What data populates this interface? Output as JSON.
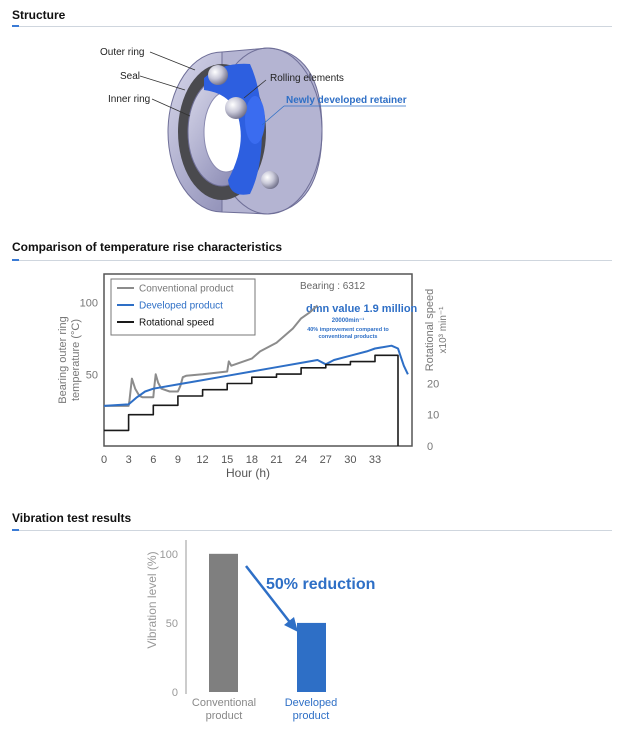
{
  "sections": {
    "structure": "Structure",
    "temperature": "Comparison of temperature rise characteristics",
    "vibration": "Vibration test results"
  },
  "structure_diagram": {
    "labels": {
      "outer_ring": "Outer ring",
      "seal": "Seal",
      "inner_ring": "Inner ring",
      "rolling_elements": "Rolling elements",
      "retainer": "Newly developed retainer"
    }
  },
  "chart_data": [
    {
      "type": "line",
      "legend": [
        "Conventional product",
        "Developed product",
        "Rotational speed"
      ],
      "bearing_label": "Bearing : 6312",
      "annotation": {
        "headline": "dmn value 1.9 million",
        "speed": "20000min⁻¹",
        "improvement": "40% improvement compared to conventional products"
      },
      "xlabel": "Hour (h)",
      "ylabel_left": [
        "Bearing outer ring",
        "temperature (°C)"
      ],
      "ylabel_right": [
        "Rotational speed",
        "x10³ min⁻¹"
      ],
      "x_ticks": [
        0,
        3,
        6,
        9,
        12,
        15,
        18,
        21,
        24,
        27,
        30,
        33
      ],
      "y_left_ticks": [
        50,
        100
      ],
      "y_right_ticks": [
        0,
        10,
        20
      ],
      "xlim": [
        0,
        37.5
      ],
      "ylim_left": [
        0,
        120
      ],
      "ylim_right": [
        0,
        55
      ],
      "series": [
        {
          "name": "Conventional product",
          "color": "#8c8c8c",
          "axis": "left",
          "points": [
            [
              0,
              28
            ],
            [
              3,
              28
            ],
            [
              3.1,
              32
            ],
            [
              3.4,
              47
            ],
            [
              3.8,
              40
            ],
            [
              4.3,
              35
            ],
            [
              4.7,
              34
            ],
            [
              6,
              34
            ],
            [
              6.1,
              40
            ],
            [
              6.3,
              50
            ],
            [
              6.6,
              44
            ],
            [
              7,
              40
            ],
            [
              8,
              38
            ],
            [
              9,
              38
            ],
            [
              9.3,
              42
            ],
            [
              9.6,
              48
            ],
            [
              10,
              49
            ],
            [
              12,
              50
            ],
            [
              15,
              52
            ],
            [
              15.2,
              59
            ],
            [
              15.5,
              56
            ],
            [
              18,
              61
            ],
            [
              19,
              66
            ],
            [
              21,
              72
            ],
            [
              22,
              77
            ],
            [
              23,
              82
            ],
            [
              24,
              89
            ],
            [
              25,
              93
            ],
            [
              26,
              98
            ]
          ]
        },
        {
          "name": "Developed product",
          "color": "#2e6fc6",
          "axis": "left",
          "points": [
            [
              0,
              28
            ],
            [
              3,
              29
            ],
            [
              4,
              34
            ],
            [
              5,
              38
            ],
            [
              6,
              40
            ],
            [
              9,
              43
            ],
            [
              12,
              46
            ],
            [
              15,
              49
            ],
            [
              18,
              52
            ],
            [
              21,
              55
            ],
            [
              24,
              58
            ],
            [
              26,
              60
            ],
            [
              27,
              57
            ],
            [
              28,
              60
            ],
            [
              30,
              63
            ],
            [
              32,
              66
            ],
            [
              33,
              68
            ],
            [
              34,
              69
            ],
            [
              35,
              70
            ],
            [
              35.8,
              68
            ],
            [
              36.5,
              56
            ],
            [
              37,
              50
            ]
          ]
        },
        {
          "name": "Rotational speed",
          "color": "#1a1a1a",
          "axis": "right",
          "points": [
            [
              0,
              5
            ],
            [
              3,
              5
            ],
            [
              3,
              10
            ],
            [
              6,
              10
            ],
            [
              6,
              13
            ],
            [
              9,
              13
            ],
            [
              9,
              16
            ],
            [
              12,
              16
            ],
            [
              12,
              18
            ],
            [
              15,
              18
            ],
            [
              15,
              20
            ],
            [
              18,
              20
            ],
            [
              18,
              22
            ],
            [
              21,
              22
            ],
            [
              21,
              23
            ],
            [
              24,
              23
            ],
            [
              24,
              25
            ],
            [
              27,
              25
            ],
            [
              27,
              26
            ],
            [
              30,
              26
            ],
            [
              30,
              27
            ],
            [
              33,
              27
            ],
            [
              33,
              29
            ],
            [
              35.8,
              29
            ],
            [
              35.8,
              0
            ]
          ]
        }
      ]
    },
    {
      "type": "bar",
      "categories": [
        [
          "Conventional",
          "product"
        ],
        [
          "Developed",
          "product"
        ]
      ],
      "values": [
        100,
        50
      ],
      "colors": [
        "#7f7f7f",
        "#2e6fc6"
      ],
      "ylabel": "Vibration level (%)",
      "y_ticks": [
        0,
        50,
        100
      ],
      "ylim": [
        0,
        110
      ],
      "annotation": "50% reduction"
    }
  ]
}
